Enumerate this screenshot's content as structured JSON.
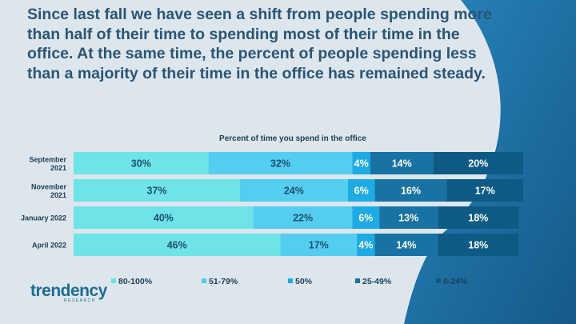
{
  "headline": "Since last fall we have seen a shift from people spending more than half of their time to spending most of their time in the office. At the same time, the percent of people spending less than a majority of their time in the office has remained steady.",
  "brand": {
    "name": "trendency",
    "sub": "RESEARCH"
  },
  "colors": {
    "background": "#dde6ec",
    "swoosh": "#1e6fa5",
    "headline": "#2a5576",
    "label": "#1b3e5a"
  },
  "chart_data": {
    "type": "bar",
    "orientation": "horizontal-stacked-100",
    "title": "Percent of time you spend in the office",
    "categories": [
      [
        "September",
        "2021"
      ],
      [
        "November",
        "2021"
      ],
      [
        "January 2022"
      ],
      [
        "April 2022"
      ]
    ],
    "series": [
      {
        "name": "80-100%",
        "color": "#6ee3e8",
        "values": [
          30,
          37,
          40,
          46
        ]
      },
      {
        "name": "51-79%",
        "color": "#53cdf0",
        "values": [
          32,
          24,
          22,
          17
        ]
      },
      {
        "name": "50%",
        "color": "#1eabe3",
        "values": [
          4,
          6,
          6,
          4
        ]
      },
      {
        "name": "25-49%",
        "color": "#1872a3",
        "values": [
          14,
          16,
          13,
          14
        ]
      },
      {
        "name": "0-24%",
        "color": "#0d5a85",
        "values": [
          20,
          17,
          18,
          18
        ]
      }
    ],
    "value_suffix": "%",
    "xlim": [
      0,
      100
    ],
    "legend_position": "bottom"
  }
}
